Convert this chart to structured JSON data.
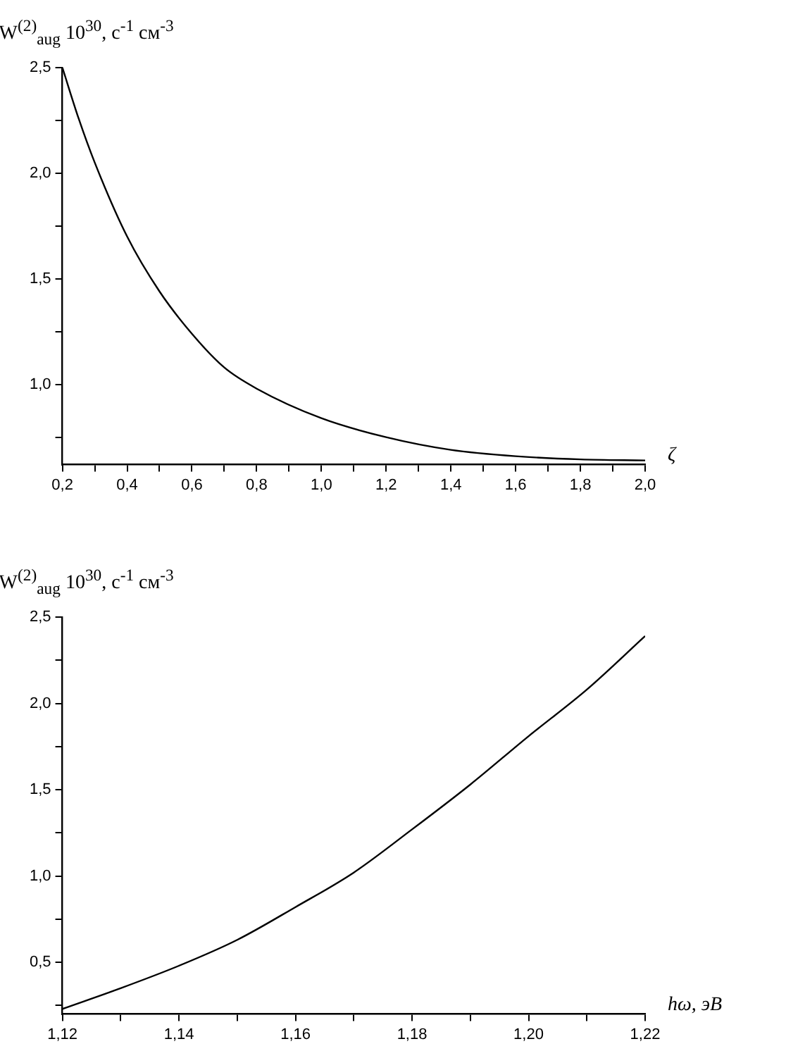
{
  "chart_data": [
    {
      "type": "line",
      "ylabel": "W$^{(2)}$$_{aug}$ 10$^{30}$, с$^{-1}$ см$^{-3}$",
      "xlabel": "ζ",
      "x": [
        0.2,
        0.25,
        0.3,
        0.4,
        0.5,
        0.6,
        0.7,
        0.8,
        1.0,
        1.2,
        1.4,
        1.6,
        1.8,
        2.0
      ],
      "series": [
        {
          "color": "#000000",
          "values": [
            2.5,
            2.26,
            2.05,
            1.7,
            1.44,
            1.24,
            1.08,
            0.98,
            0.84,
            0.75,
            0.69,
            0.66,
            0.645,
            0.64
          ]
        }
      ],
      "xlim": [
        0.2,
        2.0
      ],
      "ylim": [
        0.62,
        2.5
      ],
      "xticks": [
        {
          "value": 0.2,
          "label": "0,2"
        },
        {
          "value": 0.3,
          "label": null
        },
        {
          "value": 0.4,
          "label": "0,4"
        },
        {
          "value": 0.5,
          "label": null
        },
        {
          "value": 0.6,
          "label": "0,6"
        },
        {
          "value": 0.7,
          "label": null
        },
        {
          "value": 0.8,
          "label": "0,8"
        },
        {
          "value": 0.9,
          "label": null
        },
        {
          "value": 1.0,
          "label": "1,0"
        },
        {
          "value": 1.1,
          "label": null
        },
        {
          "value": 1.2,
          "label": "1,2"
        },
        {
          "value": 1.3,
          "label": null
        },
        {
          "value": 1.4,
          "label": "1,4"
        },
        {
          "value": 1.5,
          "label": null
        },
        {
          "value": 1.6,
          "label": "1,6"
        },
        {
          "value": 1.7,
          "label": null
        },
        {
          "value": 1.8,
          "label": "1,8"
        },
        {
          "value": 1.9,
          "label": null
        },
        {
          "value": 2.0,
          "label": "2,0"
        }
      ],
      "yticks": [
        {
          "value": 0.75,
          "label": null
        },
        {
          "value": 1.0,
          "label": "1,0"
        },
        {
          "value": 1.25,
          "label": null
        },
        {
          "value": 1.5,
          "label": "1,5"
        },
        {
          "value": 1.75,
          "label": null
        },
        {
          "value": 2.0,
          "label": "2,0"
        },
        {
          "value": 2.25,
          "label": null
        },
        {
          "value": 2.5,
          "label": "2,5"
        }
      ],
      "marker": "none",
      "line_style": "solid"
    },
    {
      "type": "line",
      "ylabel": "W$^{(2)}$$_{aug}$ 10$^{30}$, с$^{-1}$ см$^{-3}$",
      "xlabel": "hω, эВ",
      "x": [
        1.12,
        1.13,
        1.14,
        1.15,
        1.16,
        1.17,
        1.18,
        1.19,
        1.2,
        1.21,
        1.22
      ],
      "series": [
        {
          "color": "#000000",
          "values": [
            0.23,
            0.35,
            0.48,
            0.63,
            0.82,
            1.02,
            1.27,
            1.53,
            1.81,
            2.08,
            2.39
          ]
        }
      ],
      "xlim": [
        1.12,
        1.22
      ],
      "ylim": [
        0.2,
        2.5
      ],
      "xticks": [
        {
          "value": 1.12,
          "label": "1,12"
        },
        {
          "value": 1.13,
          "label": null
        },
        {
          "value": 1.14,
          "label": "1,14"
        },
        {
          "value": 1.15,
          "label": null
        },
        {
          "value": 1.16,
          "label": "1,16"
        },
        {
          "value": 1.17,
          "label": null
        },
        {
          "value": 1.18,
          "label": "1,18"
        },
        {
          "value": 1.19,
          "label": null
        },
        {
          "value": 1.2,
          "label": "1,20"
        },
        {
          "value": 1.21,
          "label": null
        },
        {
          "value": 1.22,
          "label": "1,22"
        }
      ],
      "yticks": [
        {
          "value": 0.25,
          "label": null
        },
        {
          "value": 0.5,
          "label": "0,5"
        },
        {
          "value": 0.75,
          "label": null
        },
        {
          "value": 1.0,
          "label": "1,0"
        },
        {
          "value": 1.25,
          "label": null
        },
        {
          "value": 1.5,
          "label": "1,5"
        },
        {
          "value": 1.75,
          "label": null
        },
        {
          "value": 2.0,
          "label": "2,0"
        },
        {
          "value": 2.25,
          "label": null
        },
        {
          "value": 2.5,
          "label": "2,5"
        }
      ],
      "marker": "none",
      "line_style": "solid"
    }
  ]
}
